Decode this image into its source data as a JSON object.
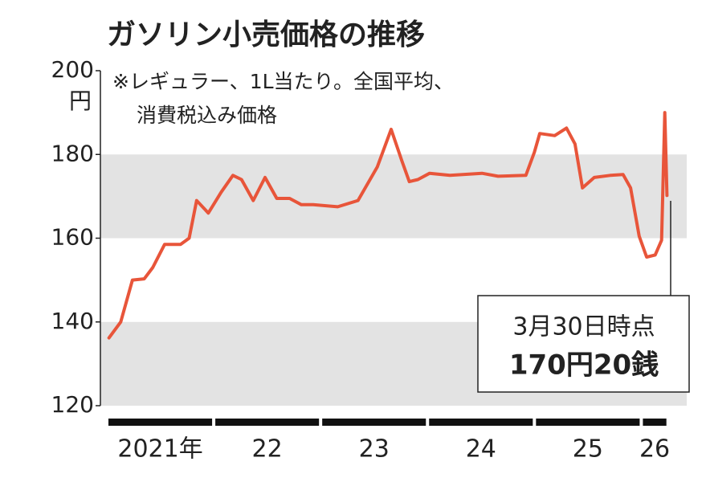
{
  "chart_data": {
    "type": "line",
    "title": "ガソリン小売価格の推移",
    "note": [
      "※レギュラー、1L当たり。全国平均、",
      "消費税込み価格"
    ],
    "y_unit": "円",
    "color": "#e8553a",
    "x": [
      2021.02,
      2021.13,
      2021.24,
      2021.35,
      2021.43,
      2021.54,
      2021.69,
      2021.77,
      2021.84,
      2021.95,
      2022.07,
      2022.18,
      2022.26,
      2022.37,
      2022.48,
      2022.59,
      2022.71,
      2022.82,
      2022.93,
      2023.16,
      2023.35,
      2023.53,
      2023.66,
      2023.76,
      2023.83,
      2023.91,
      2024.02,
      2024.21,
      2024.51,
      2024.66,
      2024.92,
      2025.0,
      2025.05,
      2025.19,
      2025.3,
      2025.38,
      2025.45,
      2025.56,
      2025.71,
      2025.83,
      2025.9,
      2025.98,
      2026.05,
      2026.13,
      2026.19,
      2026.22,
      2026.24
    ],
    "values": [
      136.2,
      140,
      150,
      150.3,
      153,
      158.5,
      158.5,
      160,
      169,
      166,
      171,
      175,
      174,
      169,
      174.5,
      169.5,
      169.5,
      168,
      168,
      167.5,
      169,
      177,
      186,
      178.5,
      173.5,
      174,
      175.5,
      175,
      175.5,
      174.8,
      175,
      180.5,
      185,
      184.5,
      186.3,
      182.5,
      172,
      174.5,
      175,
      175.2,
      172,
      160.5,
      155.5,
      156,
      159.5,
      190,
      170.2
    ],
    "xlim": [
      2021,
      2026.35
    ],
    "ylim": [
      120,
      200
    ],
    "yticks": [
      120,
      140,
      160,
      180,
      200
    ],
    "grid": "bands",
    "year_bands": [
      {
        "start": 2021,
        "end": 2022,
        "label": "2021年"
      },
      {
        "start": 2022,
        "end": 2023,
        "label": "22"
      },
      {
        "start": 2023,
        "end": 2024,
        "label": "23"
      },
      {
        "start": 2024,
        "end": 2025,
        "label": "24"
      },
      {
        "start": 2025,
        "end": 2026,
        "label": "25"
      },
      {
        "start": 2026,
        "end": 2026.25,
        "label": "26"
      }
    ],
    "annotation": {
      "lines": [
        "3月30日時点",
        "170円20銭"
      ]
    }
  }
}
